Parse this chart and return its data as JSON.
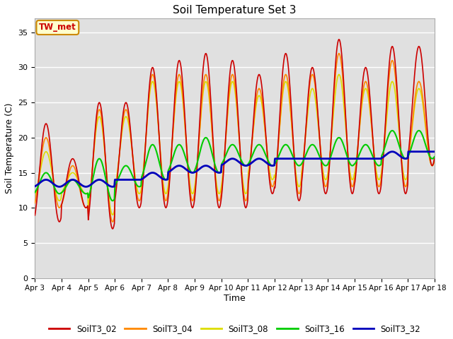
{
  "title": "Soil Temperature Set 3",
  "xlabel": "Time",
  "ylabel": "Soil Temperature (C)",
  "ylim": [
    0,
    37
  ],
  "yticks": [
    0,
    5,
    10,
    15,
    20,
    25,
    30,
    35
  ],
  "colors": {
    "SoilT3_02": "#cc0000",
    "SoilT3_04": "#ff8800",
    "SoilT3_08": "#dddd00",
    "SoilT3_16": "#00cc00",
    "SoilT3_32": "#0000bb"
  },
  "annotation_text": "TW_met",
  "annotation_bg": "#ffffcc",
  "annotation_border": "#cc8800",
  "fig_bg": "#ffffff",
  "plot_bg": "#e0e0e0",
  "grid_color": "#ffffff",
  "s02_peaks": [
    22,
    17,
    25,
    25,
    30,
    31,
    32,
    31,
    29,
    32,
    30,
    34,
    30,
    33,
    33
  ],
  "s02_troughs": [
    8,
    10,
    7,
    10,
    10,
    10,
    10,
    10,
    12,
    11,
    12,
    12,
    12,
    12,
    16
  ],
  "s04_peaks": [
    20,
    16,
    24,
    24,
    29,
    29,
    29,
    29,
    27,
    29,
    29,
    32,
    28,
    31,
    28
  ],
  "s04_troughs": [
    10,
    10,
    8,
    11,
    11,
    11,
    11,
    11,
    13,
    12,
    13,
    13,
    13,
    13,
    16
  ],
  "s08_peaks": [
    18,
    15,
    23,
    23,
    28,
    28,
    28,
    28,
    26,
    28,
    27,
    29,
    27,
    28,
    27
  ],
  "s08_troughs": [
    11,
    12,
    9,
    12,
    12,
    12,
    12,
    12,
    14,
    13,
    14,
    14,
    14,
    14,
    16
  ],
  "s16_peaks": [
    15,
    14,
    17,
    16,
    19,
    19,
    20,
    19,
    19,
    19,
    19,
    20,
    19,
    21,
    21
  ],
  "s16_troughs": [
    12,
    12,
    11,
    13,
    14,
    15,
    15,
    16,
    16,
    16,
    16,
    16,
    16,
    17,
    17
  ],
  "s32_peaks": [
    14,
    14,
    14,
    14,
    15,
    16,
    16,
    17,
    17,
    17,
    17,
    17,
    17,
    18,
    18
  ],
  "s32_troughs": [
    13,
    13,
    13,
    14,
    14,
    15,
    15,
    16,
    16,
    17,
    17,
    17,
    17,
    17,
    18
  ]
}
